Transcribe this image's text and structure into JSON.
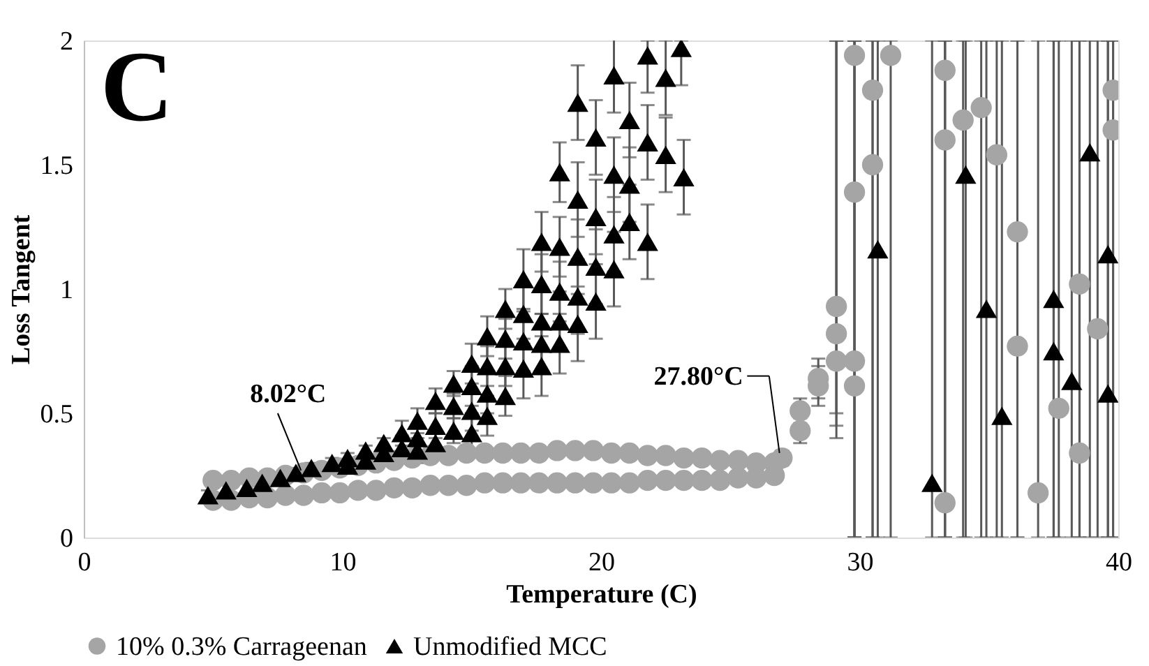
{
  "chart_data": {
    "type": "scatter",
    "xlabel": "Temperature (C)",
    "ylabel": "Loss Tangent",
    "xlim": [
      0,
      40
    ],
    "ylim": [
      0,
      2
    ],
    "xticks": [
      0,
      10,
      20,
      30,
      40
    ],
    "yticks": [
      0,
      0.5,
      1,
      1.5,
      2
    ],
    "grid": false,
    "legend": "bottom",
    "annotations": [
      "C",
      {
        "text": "8.02°C",
        "x": 8.2,
        "y": 0.26
      },
      {
        "text": "27.80°C",
        "x": 27.0,
        "y": 0.32
      }
    ],
    "series": [
      {
        "name": "10% 0.3% Carrageenan",
        "color": "#a5a5a5",
        "marker": "circle",
        "x": [
          5.0,
          5.7,
          6.4,
          7.1,
          7.8,
          8.5,
          9.2,
          9.9,
          10.6,
          11.3,
          12.0,
          12.7,
          13.4,
          14.1,
          14.8,
          15.5,
          16.2,
          16.9,
          17.6,
          18.3,
          19.0,
          19.7,
          20.4,
          21.1,
          21.8,
          22.5,
          23.2,
          23.9,
          24.6,
          25.3,
          26.0,
          26.7,
          5.0,
          5.7,
          6.4,
          7.1,
          7.8,
          8.5,
          9.2,
          9.9,
          10.6,
          11.3,
          12.0,
          12.7,
          13.4,
          14.1,
          14.8,
          15.5,
          16.2,
          16.9,
          17.6,
          18.3,
          19.0,
          19.7,
          20.4,
          21.1,
          21.8,
          22.5,
          23.2,
          23.9,
          24.6,
          25.3,
          26.0,
          26.7,
          27.0,
          27.7,
          27.7,
          28.4,
          28.4,
          29.1,
          29.1,
          29.1,
          29.8,
          29.8,
          29.8,
          29.8,
          30.5,
          30.5,
          31.2,
          33.3,
          33.3,
          33.3,
          34.0,
          34.7,
          35.3,
          36.1,
          36.1,
          36.9,
          37.7,
          38.5,
          38.5,
          39.2,
          39.8,
          39.8
        ],
        "values": [
          0.23,
          0.23,
          0.24,
          0.24,
          0.25,
          0.26,
          0.27,
          0.28,
          0.29,
          0.3,
          0.31,
          0.32,
          0.33,
          0.33,
          0.34,
          0.34,
          0.34,
          0.34,
          0.34,
          0.35,
          0.35,
          0.35,
          0.34,
          0.34,
          0.33,
          0.33,
          0.32,
          0.32,
          0.31,
          0.31,
          0.3,
          0.3,
          0.15,
          0.15,
          0.16,
          0.16,
          0.17,
          0.17,
          0.18,
          0.18,
          0.19,
          0.19,
          0.2,
          0.2,
          0.21,
          0.21,
          0.21,
          0.22,
          0.22,
          0.22,
          0.22,
          0.22,
          0.22,
          0.22,
          0.22,
          0.22,
          0.23,
          0.23,
          0.23,
          0.23,
          0.23,
          0.24,
          0.24,
          0.25,
          0.32,
          0.51,
          0.43,
          0.64,
          0.61,
          0.93,
          0.82,
          0.71,
          0.71,
          0.61,
          1.94,
          1.39,
          1.8,
          1.5,
          1.94,
          1.88,
          1.6,
          0.14,
          1.68,
          1.73,
          1.54,
          1.23,
          0.77,
          0.18,
          0.52,
          1.02,
          0.34,
          0.84,
          1.8,
          1.64
        ],
        "errors": [
          null,
          null,
          null,
          null,
          null,
          null,
          null,
          null,
          null,
          null,
          null,
          null,
          null,
          null,
          null,
          null,
          null,
          null,
          null,
          null,
          null,
          null,
          null,
          null,
          null,
          null,
          null,
          null,
          null,
          null,
          null,
          null,
          null,
          null,
          null,
          null,
          null,
          null,
          null,
          null,
          null,
          null,
          null,
          null,
          null,
          null,
          null,
          null,
          null,
          null,
          null,
          null,
          null,
          null,
          null,
          null,
          null,
          null,
          null,
          null,
          null,
          null,
          null,
          null,
          0.03,
          0.05,
          0.05,
          0.08,
          0.08,
          [
            0.5,
            2
          ],
          [
            0.45,
            2
          ],
          [
            0.4,
            2
          ],
          [
            0,
            2
          ],
          [
            0,
            2
          ],
          [
            0,
            2
          ],
          [
            0,
            2
          ],
          [
            0,
            2
          ],
          [
            0,
            2
          ],
          [
            0,
            2
          ],
          [
            0,
            2
          ],
          [
            0,
            2
          ],
          [
            0,
            2
          ],
          [
            0,
            2
          ],
          [
            0,
            2
          ],
          [
            0,
            2
          ],
          [
            0,
            2
          ],
          [
            0,
            2
          ],
          [
            0,
            2
          ],
          [
            0,
            2
          ],
          [
            0,
            2
          ],
          [
            0,
            2
          ],
          [
            0,
            2
          ],
          [
            0,
            2
          ],
          [
            0,
            2
          ]
        ]
      },
      {
        "name": "Unmodified MCC",
        "color": "#000000",
        "marker": "triangle",
        "x": [
          4.8,
          5.5,
          6.3,
          6.9,
          7.6,
          8.2,
          8.8,
          9.6,
          10.2,
          10.2,
          10.9,
          10.9,
          11.6,
          11.6,
          12.3,
          12.3,
          12.9,
          12.9,
          12.9,
          13.6,
          13.6,
          13.6,
          14.3,
          14.3,
          14.3,
          15.0,
          15.0,
          15.0,
          15.0,
          15.6,
          15.6,
          15.6,
          15.6,
          16.3,
          16.3,
          16.3,
          16.3,
          17.0,
          17.0,
          17.0,
          17.0,
          17.7,
          17.7,
          17.7,
          17.7,
          17.7,
          18.4,
          18.4,
          18.4,
          18.4,
          18.4,
          19.1,
          19.1,
          19.1,
          19.1,
          19.1,
          19.8,
          19.8,
          19.8,
          19.8,
          20.5,
          20.5,
          20.5,
          20.5,
          21.1,
          21.1,
          21.1,
          21.8,
          21.8,
          21.8,
          22.5,
          22.5,
          23.1,
          23.2,
          30.7,
          32.8,
          34.1,
          34.9,
          35.5,
          37.5,
          37.5,
          38.2,
          38.9,
          39.6,
          39.6
        ],
        "values": [
          0.17,
          0.19,
          0.2,
          0.22,
          0.24,
          0.26,
          0.28,
          0.3,
          0.32,
          0.29,
          0.35,
          0.31,
          0.38,
          0.34,
          0.42,
          0.36,
          0.47,
          0.4,
          0.35,
          0.55,
          0.45,
          0.38,
          0.62,
          0.53,
          0.43,
          0.7,
          0.61,
          0.51,
          0.42,
          0.81,
          0.69,
          0.58,
          0.49,
          0.92,
          0.8,
          0.69,
          0.57,
          1.04,
          0.9,
          0.79,
          0.68,
          1.19,
          1.02,
          0.87,
          0.78,
          0.69,
          1.47,
          1.17,
          0.99,
          0.87,
          0.78,
          1.75,
          1.36,
          1.13,
          0.97,
          0.86,
          1.61,
          1.29,
          1.09,
          0.95,
          1.86,
          1.46,
          1.22,
          1.08,
          1.68,
          1.42,
          1.27,
          1.94,
          1.59,
          1.19,
          1.85,
          1.54,
          1.97,
          1.45,
          1.16,
          0.22,
          1.46,
          0.92,
          0.49,
          0.96,
          0.75,
          0.63,
          1.55,
          1.14,
          0.58
        ],
        "errors": [
          0.02,
          0.02,
          0.02,
          0.02,
          0.02,
          0.02,
          0.02,
          0.02,
          0.02,
          0.02,
          0.02,
          0.02,
          0.02,
          0.02,
          0.05,
          0.05,
          0.05,
          0.05,
          0.05,
          0.05,
          0.05,
          0.05,
          0.05,
          0.05,
          0.05,
          0.08,
          0.08,
          0.08,
          0.08,
          0.08,
          0.08,
          0.08,
          0.08,
          0.08,
          0.08,
          0.08,
          0.08,
          0.12,
          0.12,
          0.12,
          0.12,
          0.12,
          0.12,
          0.12,
          0.12,
          0.12,
          0.12,
          0.12,
          0.12,
          0.12,
          0.12,
          0.15,
          0.15,
          0.15,
          0.15,
          0.15,
          0.15,
          0.15,
          0.15,
          0.15,
          0.15,
          0.15,
          0.15,
          0.15,
          0.15,
          0.15,
          0.15,
          [
            1.79,
            2
          ],
          0.15,
          0.15,
          0.15,
          0.15,
          [
            1.82,
            2
          ],
          0.15,
          [
            0,
            2
          ],
          [
            0,
            2
          ],
          [
            0,
            2
          ],
          [
            0,
            2
          ],
          [
            0,
            2
          ],
          [
            0,
            2
          ],
          [
            0,
            2
          ],
          [
            0,
            2
          ],
          [
            0,
            2
          ],
          [
            0,
            2
          ],
          [
            0,
            2
          ]
        ]
      }
    ]
  }
}
